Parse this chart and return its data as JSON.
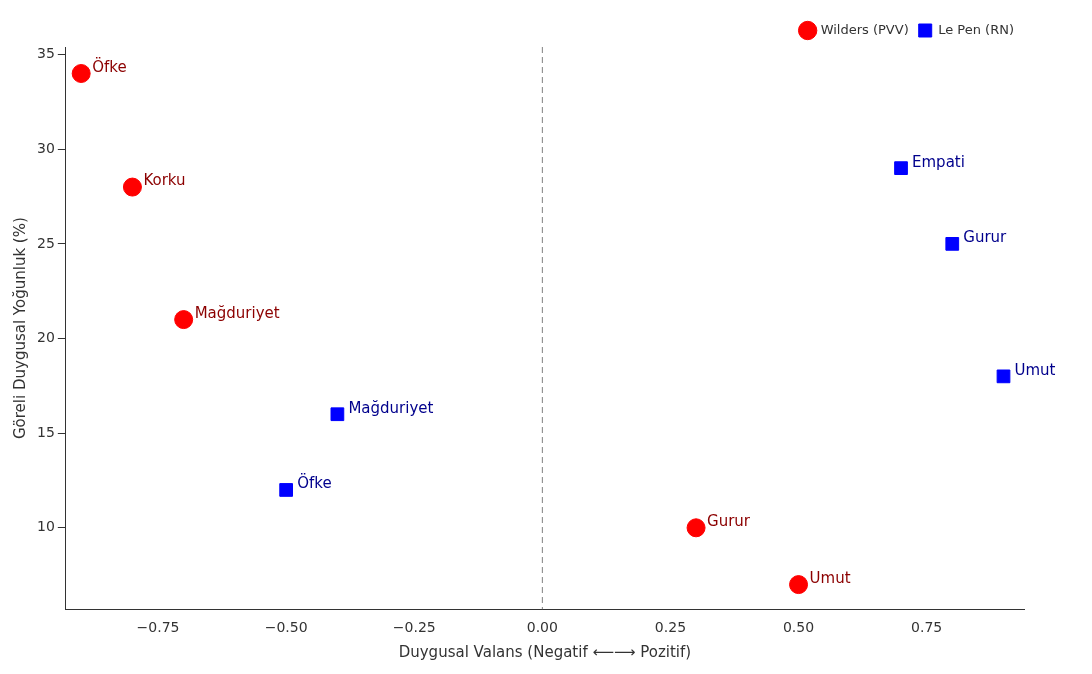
{
  "chart_data": {
    "type": "scatter",
    "xlabel": "Duygusal Valans (Negatif ⟵⟶ Pozitif)",
    "ylabel": "Göreli Duygusal Yoğunluk (%)",
    "xlim": [
      -0.93,
      0.94
    ],
    "ylim": [
      5.7,
      35.4
    ],
    "xticks": [
      {
        "value": -0.75,
        "label": "−0.75"
      },
      {
        "value": -0.5,
        "label": "−0.50"
      },
      {
        "value": -0.25,
        "label": "−0.25"
      },
      {
        "value": 0,
        "label": "0.00"
      },
      {
        "value": 0.25,
        "label": "0.25"
      },
      {
        "value": 0.5,
        "label": "0.50"
      },
      {
        "value": 0.75,
        "label": "0.75"
      }
    ],
    "yticks": [
      10,
      15,
      20,
      25,
      30,
      35
    ],
    "series": [
      {
        "name": "Wilders (PVV)",
        "color": "#ff0000",
        "marker": "circle",
        "x": [
          -0.9,
          -0.8,
          -0.7,
          0.3,
          0.5
        ],
        "values": [
          34,
          28,
          21,
          10,
          7
        ]
      },
      {
        "name": "Le Pen (RN)",
        "color": "#0000ff",
        "marker": "square",
        "x": [
          0.7,
          0.8,
          0.9,
          -0.4,
          -0.5
        ],
        "values": [
          29,
          25,
          18,
          16,
          12
        ]
      }
    ],
    "annotations": [
      {
        "text": "Öfke",
        "x": -0.9,
        "y": 34
      },
      {
        "text": "Korku",
        "x": -0.8,
        "y": 28
      },
      {
        "text": "Mağduriyet",
        "x": -0.7,
        "y": 21
      },
      {
        "text": "Gurur",
        "x": 0.3,
        "y": 10
      },
      {
        "text": "Umut",
        "x": 0.5,
        "y": 7
      },
      {
        "text": "Empati",
        "x": 0.7,
        "y": 29
      },
      {
        "text": "Gurur",
        "x": 0.8,
        "y": 25
      },
      {
        "text": "Umut",
        "x": 0.9,
        "y": 18
      },
      {
        "text": "Mağduriyet",
        "x": -0.4,
        "y": 16
      },
      {
        "text": "Öfke",
        "x": -0.5,
        "y": 12
      }
    ],
    "ref_lines": [
      {
        "axis": "x",
        "value": 0,
        "color": "#808080",
        "line_style": "dashed"
      }
    ],
    "grid": false,
    "legend": "top right"
  }
}
